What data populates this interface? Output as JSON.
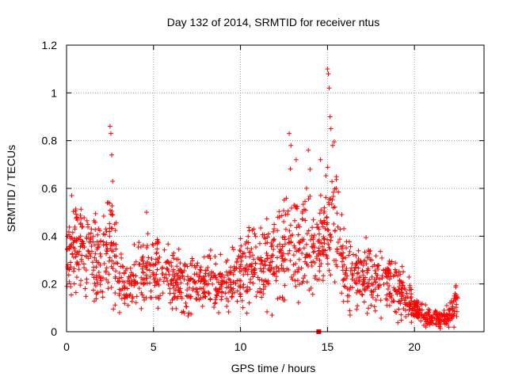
{
  "chart_data": {
    "type": "scatter",
    "title": "Day 132 of 2014, SRMTID for receiver ntus",
    "xlabel": "GPS time / hours",
    "ylabel": "SRMTID / TECUs",
    "xlim": [
      0,
      24
    ],
    "ylim": [
      0,
      1.2
    ],
    "x_ticks": [
      0,
      5,
      10,
      15,
      20
    ],
    "x_tick_labels": [
      "0",
      "5",
      "10",
      "15",
      "20"
    ],
    "y_ticks": [
      0,
      0.2,
      0.4,
      0.6,
      0.8,
      1.0,
      1.2
    ],
    "y_tick_labels": [
      "0",
      "0.2",
      "0.4",
      "0.6",
      "0.8",
      "1",
      "1.2"
    ],
    "grid": true,
    "marker": "+",
    "color": "#ff0000",
    "special_point": {
      "x": 14.5,
      "y": 0.0,
      "marker": "square"
    },
    "series_profile": {
      "description": "approximate trend of SRMTID over GPS time (hours, TECU)",
      "x": [
        0,
        0.5,
        1,
        1.5,
        2,
        2.5,
        3,
        3.5,
        4,
        5,
        6,
        7,
        8,
        9,
        10,
        11,
        12,
        12.8,
        13.5,
        14,
        14.5,
        15,
        15.3,
        16,
        17,
        18,
        19,
        20,
        20.5,
        21,
        21.5,
        22,
        22.5
      ],
      "y": [
        0.3,
        0.35,
        0.33,
        0.3,
        0.27,
        0.4,
        0.22,
        0.2,
        0.22,
        0.25,
        0.22,
        0.2,
        0.2,
        0.2,
        0.24,
        0.28,
        0.3,
        0.4,
        0.35,
        0.38,
        0.32,
        0.45,
        0.5,
        0.28,
        0.23,
        0.22,
        0.2,
        0.1,
        0.07,
        0.05,
        0.05,
        0.07,
        0.13
      ]
    },
    "spikes": [
      {
        "x": 0.3,
        "y": 0.57
      },
      {
        "x": 0.6,
        "y": 0.48
      },
      {
        "x": 0.8,
        "y": 0.45
      },
      {
        "x": 2.5,
        "y": 0.86
      },
      {
        "x": 2.55,
        "y": 0.83
      },
      {
        "x": 2.6,
        "y": 0.74
      },
      {
        "x": 2.65,
        "y": 0.63
      },
      {
        "x": 4.6,
        "y": 0.5
      },
      {
        "x": 12.8,
        "y": 0.83
      },
      {
        "x": 12.9,
        "y": 0.78
      },
      {
        "x": 13.2,
        "y": 0.72
      },
      {
        "x": 13.9,
        "y": 0.76
      },
      {
        "x": 14.0,
        "y": 0.68
      },
      {
        "x": 14.6,
        "y": 0.72
      },
      {
        "x": 15.0,
        "y": 1.1
      },
      {
        "x": 15.05,
        "y": 1.08
      },
      {
        "x": 15.1,
        "y": 1.02
      },
      {
        "x": 15.15,
        "y": 0.9
      },
      {
        "x": 15.2,
        "y": 0.85
      },
      {
        "x": 15.3,
        "y": 0.78
      },
      {
        "x": 15.5,
        "y": 0.6
      }
    ]
  }
}
